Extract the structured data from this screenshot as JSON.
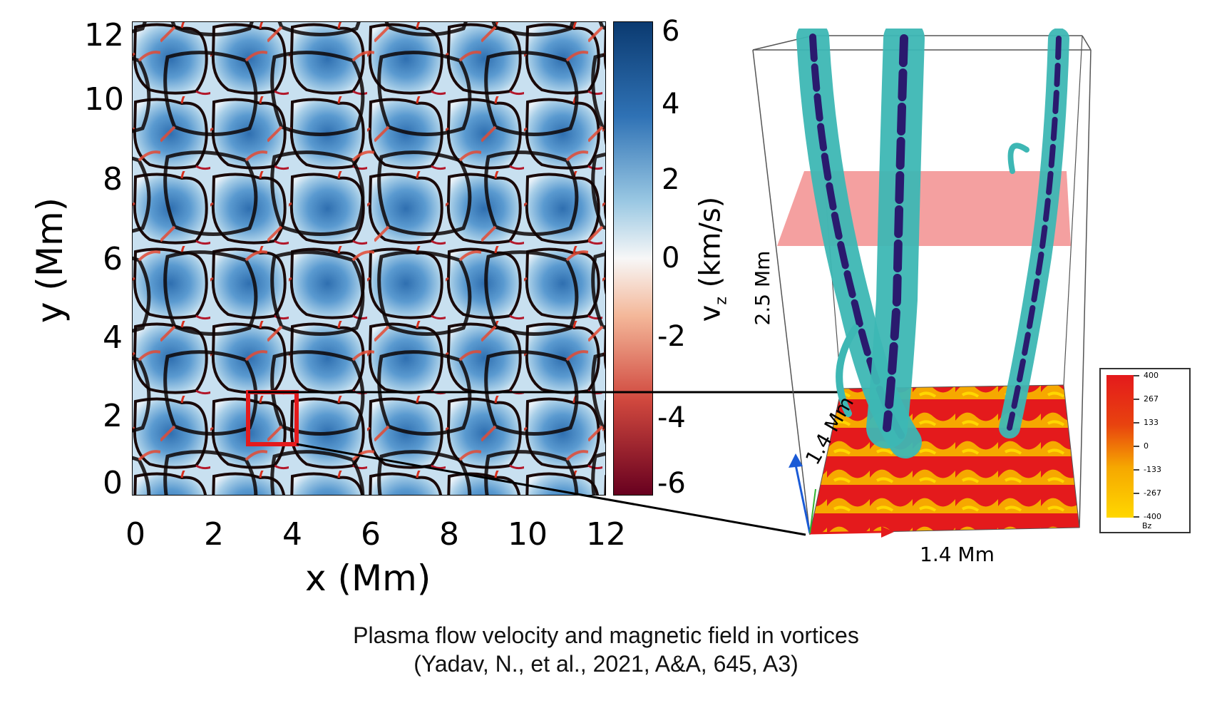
{
  "left_panel": {
    "x_ticks": [
      "0",
      "2",
      "4",
      "6",
      "8",
      "10",
      "12"
    ],
    "y_ticks": [
      "0",
      "2",
      "4",
      "6",
      "8",
      "10",
      "12"
    ],
    "x_label": "x (Mm)",
    "y_label": "y (Mm)",
    "colorbar": {
      "ticks": [
        "6",
        "4",
        "2",
        "0",
        "-2",
        "-4",
        "-6"
      ],
      "label_main": "v",
      "label_sub": "z",
      "label_unit": " (km/s)",
      "range": [
        -6,
        6
      ],
      "colors": {
        "positive": "#0b3a70",
        "zero": "#f7f7f7",
        "negative": "#67001f"
      }
    }
  },
  "right_panel": {
    "height_label": "2.5 Mm",
    "depth_label": "1.4 Mm",
    "width_label": "1.4 Mm",
    "bz_colorbar": {
      "ticks": [
        "400",
        "267",
        "133",
        "0",
        "-133",
        "-267",
        "-400"
      ],
      "label": "Bz"
    },
    "colors": {
      "tubes": "#3db7b4",
      "field_lines": "#2a1a6e",
      "plane": "#f08080",
      "surface_high": "#e41a1c",
      "surface_low": "#ffd700"
    }
  },
  "caption": {
    "line1": "Plasma flow velocity and magnetic field in vortices",
    "line2": "(Yadav, N., et al., 2021, A&A, 645, A3)"
  }
}
